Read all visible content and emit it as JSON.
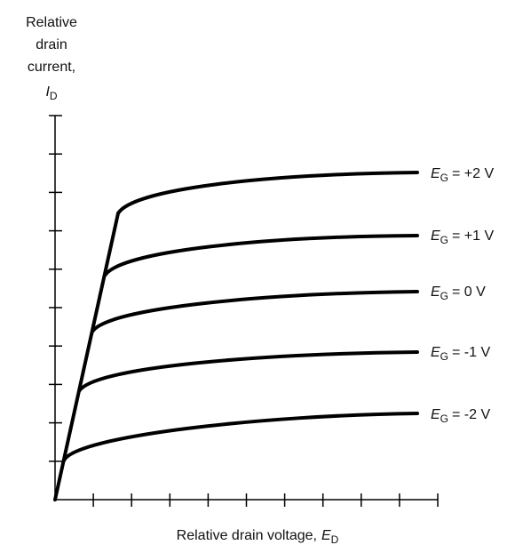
{
  "y_axis_label": {
    "lines": [
      "Relative",
      "drain",
      "current,"
    ],
    "symbol": "I",
    "subscript": "D"
  },
  "x_axis_label": {
    "text": "Relative drain voltage,",
    "symbol": "E",
    "subscript": "D"
  },
  "curves": [
    {
      "symbol": "E",
      "subscript": "G",
      "value_text": "= +2 V"
    },
    {
      "symbol": "E",
      "subscript": "G",
      "value_text": "= +1 V"
    },
    {
      "symbol": "E",
      "subscript": "G",
      "value_text": "= 0 V"
    },
    {
      "symbol": "E",
      "subscript": "G",
      "value_text": "= -1 V"
    },
    {
      "symbol": "E",
      "subscript": "G",
      "value_text": "= -2 V"
    }
  ]
}
